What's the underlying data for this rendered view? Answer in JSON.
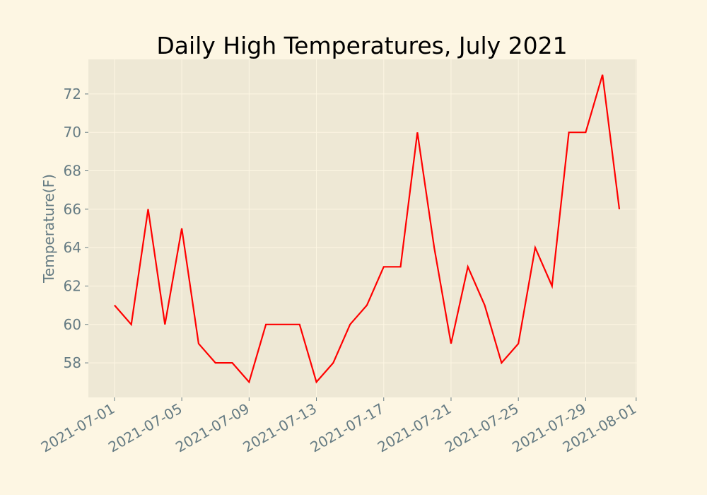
{
  "chart_data": {
    "type": "line",
    "title": "Daily High Temperatures, July 2021",
    "xlabel": "",
    "ylabel": "Temperature(F)",
    "x": [
      "2021-07-01",
      "2021-07-02",
      "2021-07-03",
      "2021-07-04",
      "2021-07-05",
      "2021-07-06",
      "2021-07-07",
      "2021-07-08",
      "2021-07-09",
      "2021-07-10",
      "2021-07-11",
      "2021-07-12",
      "2021-07-13",
      "2021-07-14",
      "2021-07-15",
      "2021-07-16",
      "2021-07-17",
      "2021-07-18",
      "2021-07-19",
      "2021-07-20",
      "2021-07-21",
      "2021-07-22",
      "2021-07-23",
      "2021-07-24",
      "2021-07-25",
      "2021-07-26",
      "2021-07-27",
      "2021-07-28",
      "2021-07-29",
      "2021-07-30",
      "2021-07-31"
    ],
    "series": [
      {
        "values": [
          61,
          60,
          66,
          60,
          65,
          59,
          58,
          58,
          57,
          60,
          60,
          60,
          57,
          58,
          60,
          61,
          63,
          63,
          70,
          64,
          59,
          63,
          61,
          58,
          59,
          64,
          62,
          70,
          70,
          73,
          66
        ],
        "color": "#ff0000"
      }
    ],
    "xlim": [
      "2021-06-29",
      "2021-08-01"
    ],
    "ylim": [
      56.2,
      73.8
    ],
    "xticks": [
      "2021-07-01",
      "2021-07-05",
      "2021-07-09",
      "2021-07-13",
      "2021-07-17",
      "2021-07-21",
      "2021-07-25",
      "2021-07-29",
      "2021-08-01"
    ],
    "yticks": [
      58,
      60,
      62,
      64,
      66,
      68,
      70,
      72
    ],
    "grid": true,
    "colors": {
      "figure_background": "#fdf6e3",
      "plot_background": "#eee8d5",
      "grid": "#fdf6e3",
      "tick_text": "#657b83",
      "title_text": "#000000"
    }
  }
}
